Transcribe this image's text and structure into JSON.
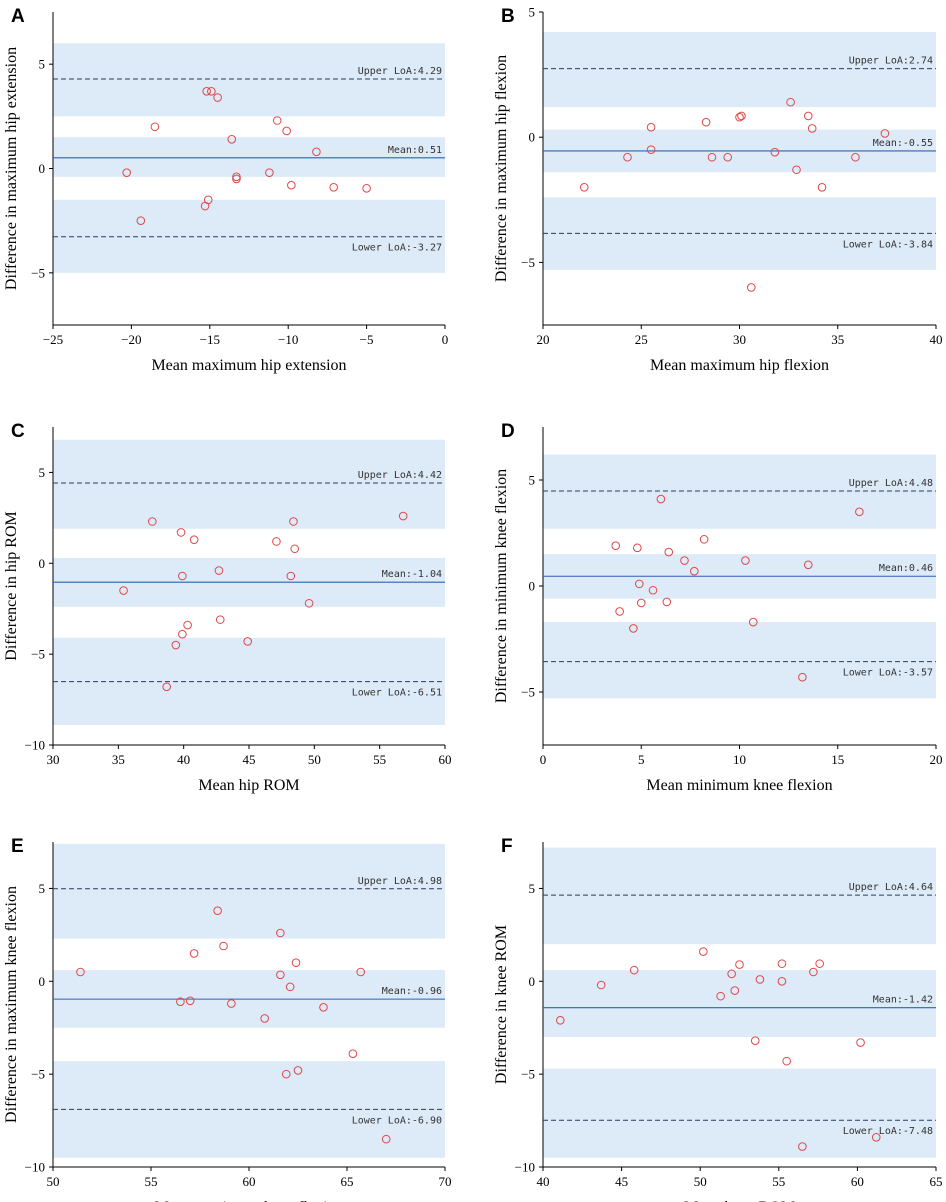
{
  "chart_data": [
    {
      "panel": "A",
      "type": "scatter",
      "title": "",
      "xlabel": "Mean maximum hip extension",
      "ylabel": "Difference in maximum hip extension",
      "xlim": [
        -25,
        0
      ],
      "ylim": [
        -7.5,
        7.5
      ],
      "xticks": [
        -25,
        -20,
        -15,
        -10,
        -5,
        0
      ],
      "yticks": [
        -5,
        0,
        5
      ],
      "bands": [
        [
          -5,
          -1.5
        ],
        [
          -0.4,
          1.5
        ],
        [
          2.5,
          6
        ]
      ],
      "mean": 0.51,
      "upper_loa": 4.29,
      "lower_loa": -3.27,
      "mean_label": "Mean:0.51",
      "upper_label": "Upper LoA:4.29",
      "lower_label": "Lower LoA:-3.27",
      "points": [
        [
          -20.3,
          -0.2
        ],
        [
          -19.4,
          -2.5
        ],
        [
          -18.5,
          2.0
        ],
        [
          -15.2,
          3.7
        ],
        [
          -14.9,
          3.7
        ],
        [
          -14.5,
          3.4
        ],
        [
          -13.6,
          1.4
        ],
        [
          -13.3,
          -0.4
        ],
        [
          -13.3,
          -0.5
        ],
        [
          -15.3,
          -1.8
        ],
        [
          -15.1,
          -1.5
        ],
        [
          -11.2,
          -0.2
        ],
        [
          -10.7,
          2.3
        ],
        [
          -10.1,
          1.8
        ],
        [
          -9.8,
          -0.8
        ],
        [
          -8.2,
          0.8
        ],
        [
          -7.1,
          -0.9
        ],
        [
          -5.0,
          -0.95
        ]
      ]
    },
    {
      "panel": "B",
      "type": "scatter",
      "title": "",
      "xlabel": "Mean maximum hip flexion",
      "ylabel": "Difference in maximum hip flexion",
      "xlim": [
        20,
        40
      ],
      "ylim": [
        -7.5,
        5
      ],
      "xticks": [
        20,
        25,
        30,
        35,
        40
      ],
      "yticks": [
        -5,
        0,
        5
      ],
      "bands": [
        [
          -5.3,
          -2.4
        ],
        [
          -1.4,
          0.3
        ],
        [
          1.2,
          4.2
        ]
      ],
      "mean": -0.55,
      "upper_loa": 2.74,
      "lower_loa": -3.84,
      "mean_label": "Mean:-0.55",
      "upper_label": "Upper LoA:2.74",
      "lower_label": "Lower LoA:-3.84",
      "points": [
        [
          22.1,
          -2.0
        ],
        [
          24.3,
          -0.8
        ],
        [
          25.5,
          0.4
        ],
        [
          25.5,
          -0.5
        ],
        [
          28.3,
          0.6
        ],
        [
          28.6,
          -0.8
        ],
        [
          29.4,
          -0.8
        ],
        [
          30.0,
          0.8
        ],
        [
          30.1,
          0.85
        ],
        [
          30.6,
          -6.0
        ],
        [
          31.8,
          -0.6
        ],
        [
          32.6,
          1.4
        ],
        [
          32.9,
          -1.3
        ],
        [
          33.5,
          0.85
        ],
        [
          33.7,
          0.35
        ],
        [
          34.2,
          -2.0
        ],
        [
          35.9,
          -0.8
        ],
        [
          37.4,
          0.15
        ]
      ]
    },
    {
      "panel": "C",
      "type": "scatter",
      "title": "",
      "xlabel": "Mean hip ROM",
      "ylabel": "Difference in hip ROM",
      "xlim": [
        30,
        60
      ],
      "ylim": [
        -10,
        7.5
      ],
      "xticks": [
        30,
        35,
        40,
        45,
        50,
        55,
        60
      ],
      "yticks": [
        -10,
        -5,
        0,
        5
      ],
      "bands": [
        [
          -8.9,
          -4.1
        ],
        [
          -2.4,
          0.3
        ],
        [
          1.9,
          6.8
        ]
      ],
      "mean": -1.04,
      "upper_loa": 4.42,
      "lower_loa": -6.51,
      "mean_label": "Mean:-1.04",
      "upper_label": "Upper LoA:4.42",
      "lower_label": "Lower LoA:-6.51",
      "points": [
        [
          35.4,
          -1.5
        ],
        [
          37.6,
          2.3
        ],
        [
          38.7,
          -6.8
        ],
        [
          39.4,
          -4.5
        ],
        [
          39.8,
          1.7
        ],
        [
          39.9,
          -0.7
        ],
        [
          39.9,
          -3.9
        ],
        [
          40.3,
          -3.4
        ],
        [
          40.8,
          1.3
        ],
        [
          42.7,
          -0.4
        ],
        [
          42.8,
          -3.1
        ],
        [
          44.9,
          -4.3
        ],
        [
          47.1,
          1.2
        ],
        [
          48.2,
          -0.7
        ],
        [
          48.4,
          2.3
        ],
        [
          48.5,
          0.8
        ],
        [
          49.6,
          -2.2
        ],
        [
          56.8,
          2.6
        ]
      ]
    },
    {
      "panel": "D",
      "type": "scatter",
      "title": "",
      "xlabel": "Mean minimum knee flexion",
      "ylabel": "Difference in minimum knee flexion",
      "xlim": [
        0,
        20
      ],
      "ylim": [
        -7.5,
        7.5
      ],
      "xticks": [
        0,
        5,
        10,
        15,
        20
      ],
      "yticks": [
        -5,
        0,
        5
      ],
      "bands": [
        [
          -5.3,
          -1.7
        ],
        [
          -0.6,
          1.5
        ],
        [
          2.7,
          6.2
        ]
      ],
      "mean": 0.46,
      "upper_loa": 4.48,
      "lower_loa": -3.57,
      "mean_label": "Mean:0.46",
      "upper_label": "Upper LoA:4.48",
      "lower_label": "Lower LoA:-3.57",
      "points": [
        [
          3.7,
          1.9
        ],
        [
          3.9,
          -1.2
        ],
        [
          4.6,
          -2.0
        ],
        [
          4.8,
          1.8
        ],
        [
          4.9,
          0.1
        ],
        [
          5.0,
          -0.8
        ],
        [
          5.6,
          -0.2
        ],
        [
          6.0,
          4.1
        ],
        [
          6.3,
          -0.75
        ],
        [
          6.4,
          1.6
        ],
        [
          7.2,
          1.2
        ],
        [
          7.7,
          0.7
        ],
        [
          8.2,
          2.2
        ],
        [
          10.3,
          1.2
        ],
        [
          10.7,
          -1.7
        ],
        [
          13.2,
          -4.3
        ],
        [
          13.5,
          1.0
        ],
        [
          16.1,
          3.5
        ]
      ]
    },
    {
      "panel": "E",
      "type": "scatter",
      "title": "",
      "xlabel": "Mean maximum knee flexion",
      "ylabel": "Difference in maximum knee flexion",
      "xlim": [
        50,
        70
      ],
      "ylim": [
        -10,
        7.5
      ],
      "xticks": [
        50,
        55,
        60,
        65,
        70
      ],
      "yticks": [
        -10,
        -5,
        0,
        5
      ],
      "bands": [
        [
          -9.5,
          -4.3
        ],
        [
          -2.5,
          0.6
        ],
        [
          2.3,
          7.4
        ]
      ],
      "mean": -0.96,
      "upper_loa": 4.98,
      "lower_loa": -6.9,
      "mean_label": "Mean:-0.96",
      "upper_label": "Upper LoA:4.98",
      "lower_label": "Lower LoA:-6.90",
      "points": [
        [
          51.4,
          0.5
        ],
        [
          56.5,
          -1.1
        ],
        [
          57.0,
          -1.05
        ],
        [
          57.2,
          1.5
        ],
        [
          58.4,
          3.8
        ],
        [
          58.7,
          1.9
        ],
        [
          59.1,
          -1.2
        ],
        [
          60.8,
          -2.0
        ],
        [
          61.6,
          2.6
        ],
        [
          61.6,
          0.35
        ],
        [
          61.9,
          -5.0
        ],
        [
          62.1,
          -0.3
        ],
        [
          62.4,
          1.0
        ],
        [
          62.5,
          -4.8
        ],
        [
          63.8,
          -1.4
        ],
        [
          65.3,
          -3.9
        ],
        [
          65.7,
          0.5
        ],
        [
          67.0,
          -8.5
        ]
      ]
    },
    {
      "panel": "F",
      "type": "scatter",
      "title": "",
      "xlabel": "Mean knee ROM",
      "ylabel": "Difference in knee ROM",
      "xlim": [
        40,
        65
      ],
      "ylim": [
        -10,
        7.5
      ],
      "xticks": [
        40,
        45,
        50,
        55,
        60,
        65
      ],
      "yticks": [
        -10,
        -5,
        0,
        5
      ],
      "bands": [
        [
          -9.5,
          -4.7
        ],
        [
          -3.0,
          0.6
        ],
        [
          2.0,
          7.2
        ]
      ],
      "mean": -1.42,
      "upper_loa": 4.64,
      "lower_loa": -7.48,
      "mean_label": "Mean:-1.42",
      "upper_label": "Upper LoA:4.64",
      "lower_label": "Lower LoA:-7.48",
      "points": [
        [
          41.1,
          -2.1
        ],
        [
          43.7,
          -0.2
        ],
        [
          45.8,
          0.6
        ],
        [
          50.2,
          1.6
        ],
        [
          51.3,
          -0.8
        ],
        [
          52.0,
          0.4
        ],
        [
          52.2,
          -0.5
        ],
        [
          52.5,
          0.9
        ],
        [
          53.5,
          -3.2
        ],
        [
          53.8,
          0.1
        ],
        [
          55.2,
          0.95
        ],
        [
          55.2,
          0.0
        ],
        [
          55.5,
          -4.3
        ],
        [
          56.5,
          -8.9
        ],
        [
          57.2,
          0.5
        ],
        [
          57.6,
          0.95
        ],
        [
          60.2,
          -3.3
        ],
        [
          61.2,
          -8.4
        ]
      ]
    }
  ]
}
